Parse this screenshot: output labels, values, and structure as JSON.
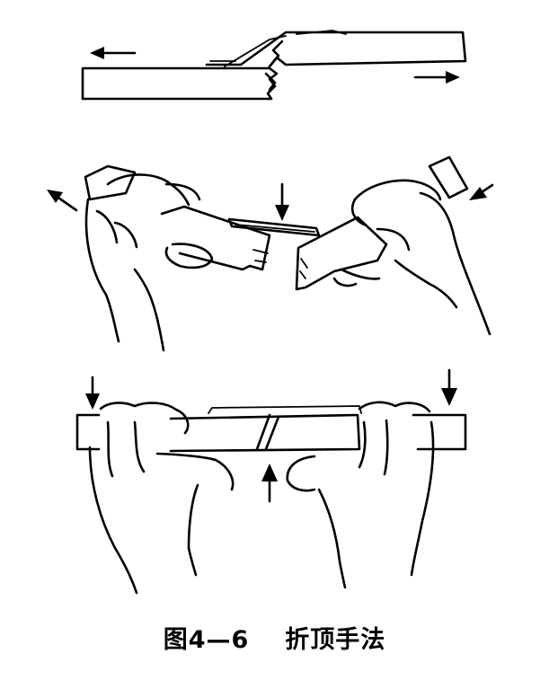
{
  "figure": {
    "caption_number": "图4—6",
    "caption_title": "折顶手法"
  }
}
